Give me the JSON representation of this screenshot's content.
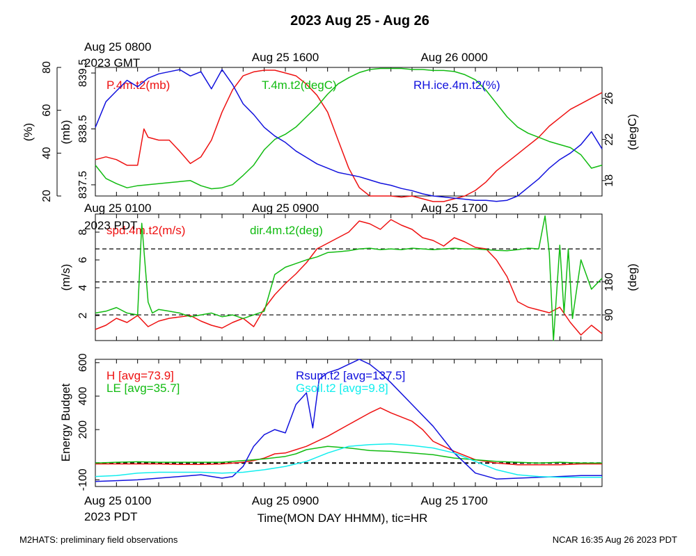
{
  "title": "2023 Aug 25 - Aug 26",
  "footer": {
    "left": "M2HATS: preliminary field observations",
    "right": "NCAR 16:35 Aug 26 2023 PDT"
  },
  "time_axis": {
    "hour_range": [
      0,
      24
    ],
    "label": "Time(MON DAY HHMM), tic=HR",
    "gmt_labels": [
      {
        "hour": 1,
        "text": "Aug 25 0800"
      },
      {
        "hour": 9,
        "text": "Aug 25 1600"
      },
      {
        "hour": 17,
        "text": "Aug 26 0000"
      }
    ],
    "gmt_year": "2023 GMT",
    "pdt_labels": [
      {
        "hour": 1,
        "text": "Aug 25 0100"
      },
      {
        "hour": 9,
        "text": "Aug 25 0900"
      },
      {
        "hour": 17,
        "text": "Aug 25 1700"
      }
    ],
    "pdt_year": "2023 PDT"
  },
  "colors": {
    "red": "#ee1111",
    "green": "#11bb11",
    "blue": "#1111dd",
    "cyan": "#11eeee",
    "black": "#000000"
  },
  "chart_data": [
    {
      "type": "line",
      "axes": {
        "left_outer": {
          "label": "(%)",
          "ticks": [
            20,
            40,
            60,
            80
          ],
          "range": [
            20,
            80
          ]
        },
        "left_inner": {
          "label": "(mb)",
          "ticks": [
            "837.5",
            "838.5",
            "839.5"
          ],
          "range": [
            837.3,
            839.6
          ]
        },
        "right": {
          "label": "(degC)",
          "ticks": [
            18,
            22,
            26
          ],
          "range": [
            16.5,
            29
          ]
        }
      },
      "series": [
        {
          "name": "P.4m.t2(mb)",
          "color": "red",
          "axis": "left_inner",
          "x": [
            0,
            0.5,
            1,
            1.5,
            2,
            2.3,
            2.5,
            3,
            3.5,
            4,
            4.5,
            5,
            5.5,
            6,
            6.5,
            7,
            7.5,
            8,
            8.5,
            9,
            9.5,
            10,
            10.5,
            11,
            11.5,
            12,
            12.5,
            13,
            13.5,
            14,
            14.5,
            15,
            15.5,
            16,
            16.5,
            17,
            17.5,
            18,
            18.5,
            19,
            19.5,
            20,
            20.5,
            21,
            21.5,
            22,
            22.5,
            23,
            23.5,
            24
          ],
          "y": [
            837.95,
            838.0,
            837.95,
            837.85,
            837.85,
            838.5,
            838.35,
            838.3,
            838.3,
            838.1,
            837.88,
            838.0,
            838.3,
            838.8,
            839.2,
            839.45,
            839.52,
            839.55,
            839.55,
            839.5,
            839.45,
            839.3,
            839.1,
            838.8,
            838.3,
            837.8,
            837.45,
            837.3,
            837.3,
            837.3,
            837.28,
            837.3,
            837.25,
            837.2,
            837.2,
            837.25,
            837.3,
            837.4,
            837.55,
            837.75,
            837.9,
            838.05,
            838.2,
            838.35,
            838.55,
            838.7,
            838.85,
            838.95,
            839.05,
            839.15
          ]
        },
        {
          "name": "T.4m.t2(degC)",
          "color": "green",
          "axis": "right",
          "x": [
            0,
            0.5,
            1,
            1.5,
            2,
            2.5,
            3,
            3.5,
            4,
            4.5,
            5,
            5.5,
            6,
            6.5,
            7,
            7.5,
            8,
            8.5,
            9,
            9.5,
            10,
            10.5,
            11,
            11.5,
            12,
            12.5,
            13,
            13.5,
            14,
            14.5,
            15,
            15.5,
            16,
            16.5,
            17,
            17.5,
            18,
            18.5,
            19,
            19.5,
            20,
            20.5,
            21,
            21.5,
            22,
            22.5,
            23,
            23.5,
            24
          ],
          "y": [
            19.5,
            18.2,
            17.7,
            17.3,
            17.5,
            17.6,
            17.7,
            17.8,
            17.9,
            18.0,
            17.5,
            17.2,
            17.3,
            17.6,
            18.5,
            19.5,
            21,
            22,
            22.5,
            23.2,
            24.2,
            25.2,
            26.4,
            27.4,
            28,
            28.5,
            28.8,
            28.9,
            28.9,
            28.9,
            28.8,
            28.8,
            28.7,
            28.7,
            28.6,
            28.3,
            27.8,
            26.8,
            25.5,
            24.2,
            23.2,
            22.6,
            22.2,
            21.8,
            21.5,
            21.2,
            20.5,
            19.2,
            19.5
          ]
        },
        {
          "name": "RH.ice.4m.t2(%)",
          "color": "blue",
          "axis": "left_outer",
          "x": [
            0,
            0.5,
            1,
            1.5,
            2,
            2.5,
            3,
            3.5,
            4,
            4.5,
            5,
            5.5,
            6,
            6.5,
            7,
            7.5,
            8,
            8.5,
            9,
            9.5,
            10,
            10.5,
            11,
            11.5,
            12,
            12.5,
            13,
            13.5,
            14,
            14.5,
            15,
            15.5,
            16,
            16.5,
            17,
            17.5,
            18,
            18.5,
            19,
            19.5,
            20,
            20.5,
            21,
            21.5,
            22,
            22.5,
            23,
            23.5,
            24
          ],
          "y": [
            52,
            64,
            69,
            74,
            71,
            75,
            77,
            78,
            79,
            76,
            78,
            70,
            79,
            72,
            63,
            58,
            52,
            48,
            45,
            41,
            38,
            35,
            33,
            31,
            30,
            29,
            27.5,
            26,
            25,
            23.5,
            22.5,
            21,
            20,
            19.5,
            19,
            18.5,
            18,
            18,
            17.5,
            18,
            20,
            24,
            28,
            33,
            37,
            40,
            44,
            50,
            42
          ]
        }
      ]
    },
    {
      "type": "line",
      "axes": {
        "left": {
          "label": "(m/s)",
          "ticks": [
            2,
            4,
            6,
            8
          ],
          "range": [
            0.2,
            9.3
          ]
        },
        "right": {
          "label": "(deg)",
          "ticks": [
            90,
            180
          ],
          "range": [
            20,
            365
          ]
        }
      },
      "reference_lines_deg": [
        90,
        180,
        270
      ],
      "series": [
        {
          "name": "spd.4m.t2(m/s)",
          "color": "red",
          "axis": "left",
          "x": [
            0,
            0.5,
            1,
            1.5,
            2,
            2.5,
            3,
            3.5,
            4,
            4.5,
            5,
            5.5,
            6,
            6.5,
            7,
            7.5,
            8,
            8.5,
            9,
            9.5,
            10,
            10.5,
            11,
            11.5,
            12,
            12.5,
            13,
            13.5,
            14,
            14.5,
            15,
            15.5,
            16,
            16.5,
            17,
            17.5,
            18,
            18.5,
            19,
            19.5,
            20,
            20.5,
            21,
            21.5,
            22,
            22.5,
            23,
            23.5,
            24
          ],
          "y": [
            1.0,
            1.3,
            1.8,
            1.5,
            2.0,
            1.2,
            1.6,
            1.8,
            1.9,
            2.0,
            1.6,
            1.3,
            1.1,
            1.5,
            1.8,
            1.2,
            2.5,
            3.5,
            4.3,
            5.0,
            5.8,
            6.8,
            7.2,
            7.6,
            8.0,
            8.8,
            8.6,
            8.2,
            8.9,
            8.5,
            8.2,
            7.6,
            7.4,
            7.0,
            7.6,
            7.3,
            6.9,
            6.8,
            6.0,
            4.8,
            3.0,
            2.6,
            2.4,
            2.2,
            2.6,
            1.5,
            0.6,
            1.3,
            0.7
          ]
        },
        {
          "name": "dir.4m.t2(deg)",
          "color": "green",
          "axis": "right",
          "x": [
            0,
            0.5,
            1,
            1.5,
            2,
            2.2,
            2.5,
            2.7,
            3,
            3.5,
            4,
            4.5,
            5,
            5.5,
            6,
            6.5,
            7,
            7.5,
            8,
            8.5,
            9,
            9.5,
            10,
            10.5,
            11,
            11.5,
            12,
            12.5,
            13,
            13.5,
            14,
            14.5,
            15,
            15.5,
            16,
            16.5,
            17,
            17.5,
            18,
            18.5,
            19,
            19.5,
            20,
            20.5,
            21,
            21.3,
            21.5,
            21.7,
            22,
            22.2,
            22.4,
            22.6,
            23,
            23.5,
            24
          ],
          "y": [
            95,
            100,
            110,
            95,
            90,
            340,
            125,
            95,
            105,
            100,
            95,
            85,
            90,
            95,
            85,
            90,
            80,
            90,
            100,
            200,
            220,
            230,
            240,
            248,
            260,
            262,
            265,
            270,
            272,
            268,
            270,
            268,
            272,
            270,
            268,
            270,
            272,
            270,
            270,
            268,
            266,
            265,
            268,
            272,
            270,
            360,
            260,
            20,
            280,
            95,
            270,
            80,
            240,
            160,
            190
          ]
        }
      ]
    },
    {
      "type": "line",
      "axes": {
        "left": {
          "label": "Energy Budget",
          "ticks": [
            "-100",
            "200",
            "400",
            "600"
          ],
          "tick_values": [
            -100,
            200,
            400,
            600
          ],
          "range": [
            -140,
            620
          ]
        }
      },
      "zero_line": 0,
      "series": [
        {
          "name": "H",
          "label": "H [avg=73.9]",
          "color": "red",
          "x": [
            0,
            1,
            2,
            3,
            4,
            5,
            6,
            7,
            7.5,
            8,
            8.5,
            9,
            9.5,
            10,
            11,
            12,
            13,
            13.5,
            14,
            15,
            15.5,
            16,
            17,
            18,
            19,
            20,
            21,
            22,
            23,
            24
          ],
          "y": [
            -5,
            -5,
            -5,
            -5,
            -8,
            -8,
            -5,
            5,
            15,
            30,
            55,
            60,
            80,
            100,
            160,
            230,
            300,
            330,
            300,
            250,
            200,
            130,
            70,
            20,
            0,
            -10,
            -10,
            -10,
            -5,
            -5
          ]
        },
        {
          "name": "LE",
          "label": "LE [avg=35.7]",
          "color": "green",
          "x": [
            0,
            1,
            2,
            3,
            4,
            5,
            6,
            7,
            8,
            9,
            9.5,
            10,
            11,
            12,
            13,
            14,
            15,
            16,
            17,
            18,
            19,
            20,
            21,
            22,
            23,
            24
          ],
          "y": [
            0,
            5,
            8,
            5,
            5,
            5,
            5,
            15,
            25,
            40,
            55,
            80,
            100,
            90,
            75,
            70,
            60,
            50,
            30,
            20,
            10,
            5,
            0,
            5,
            0,
            0
          ]
        },
        {
          "name": "Rsum.t2",
          "label": "Rsum.t2 [avg=137.5]",
          "color": "blue",
          "x": [
            0,
            1,
            2,
            3,
            4,
            5,
            6,
            6.5,
            7,
            7.5,
            8,
            8.5,
            9,
            9.5,
            10,
            10.3,
            10.6,
            11,
            11.5,
            12,
            12.5,
            13,
            13.5,
            14,
            15,
            16,
            17,
            18,
            19,
            20,
            21,
            22,
            23,
            24
          ],
          "y": [
            -110,
            -105,
            -100,
            -90,
            -80,
            -70,
            -90,
            -80,
            -20,
            100,
            170,
            200,
            180,
            350,
            420,
            210,
            500,
            540,
            560,
            590,
            620,
            590,
            540,
            480,
            350,
            220,
            60,
            -60,
            -95,
            -90,
            -85,
            -80,
            -75,
            -75
          ]
        },
        {
          "name": "Gsoil.t2",
          "label": "Gsoil.t2 [avg=9.8]",
          "color": "cyan",
          "x": [
            0,
            1,
            2,
            3,
            4,
            5,
            6,
            7,
            8,
            9,
            10,
            11,
            12,
            13,
            14,
            15,
            16,
            17,
            18,
            19,
            20,
            21,
            22,
            23,
            24
          ],
          "y": [
            -80,
            -75,
            -60,
            -55,
            -55,
            -55,
            -60,
            -55,
            -40,
            -20,
            10,
            60,
            100,
            110,
            115,
            105,
            90,
            60,
            10,
            -40,
            -70,
            -80,
            -85,
            -85,
            -85
          ]
        }
      ]
    }
  ]
}
